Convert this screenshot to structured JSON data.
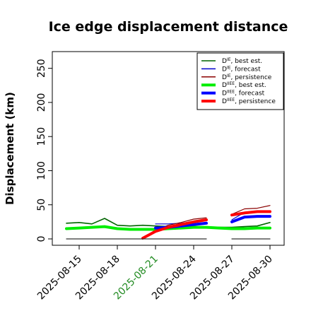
{
  "chart_data": {
    "type": "line",
    "title": "Ice edge displacement distance",
    "ylabel": "Displacement (km)",
    "xlabel": "",
    "ylim": [
      0,
      260
    ],
    "yticks": [
      0,
      50,
      100,
      150,
      200,
      250
    ],
    "xlim": [
      "2025-08-13",
      "2025-08-31"
    ],
    "xticks": [
      "2025-08-15",
      "2025-08-18",
      "2025-08-21",
      "2025-08-24",
      "2025-08-27",
      "2025-08-30"
    ],
    "highlight_tick": "2025-08-21",
    "highlight_color": "#228B22",
    "grid": false,
    "legend_position": "top-right",
    "series": [
      {
        "name": "D^IE, best est.",
        "color": "#006400",
        "width": 1.6,
        "x": [
          "2025-08-14",
          "2025-08-15",
          "2025-08-16",
          "2025-08-17",
          "2025-08-18",
          "2025-08-19",
          "2025-08-20",
          "2025-08-21",
          "2025-08-22",
          "2025-08-23",
          "2025-08-24",
          "2025-08-25",
          "2025-08-26",
          "2025-08-27",
          "2025-08-28",
          "2025-08-29",
          "2025-08-30"
        ],
        "y": [
          23,
          24,
          22,
          30,
          20,
          19,
          20,
          19,
          18,
          18,
          18,
          17,
          17,
          17,
          18,
          19,
          24
        ]
      },
      {
        "name": "D^IE, forecast",
        "color": "#0000cd",
        "width": 1.2,
        "x": [
          "2025-08-21",
          "2025-08-22",
          "2025-08-23",
          "2025-08-24",
          "2025-08-25"
        ],
        "y": [
          22,
          22,
          23,
          25,
          27
        ]
      },
      {
        "name": "D^IE, forecast",
        "color": "#0000cd",
        "width": 1.2,
        "x": [
          "2025-08-27",
          "2025-08-28",
          "2025-08-29",
          "2025-08-30"
        ],
        "y": [
          28,
          39,
          40,
          40
        ]
      },
      {
        "name": "D^IE, persistence",
        "color": "#8b0000",
        "width": 1.2,
        "x": [
          "2025-08-20",
          "2025-08-21",
          "2025-08-22",
          "2025-08-23",
          "2025-08-24",
          "2025-08-25"
        ],
        "y": [
          1,
          13,
          20,
          24,
          29,
          31
        ]
      },
      {
        "name": "D^IE, persistence",
        "color": "#8b0000",
        "width": 1.2,
        "x": [
          "2025-08-27",
          "2025-08-28",
          "2025-08-29",
          "2025-08-30"
        ],
        "y": [
          36,
          44,
          45,
          49
        ]
      },
      {
        "name": "D^IIEE, best est.",
        "color": "#00ee00",
        "width": 4,
        "x": [
          "2025-08-14",
          "2025-08-15",
          "2025-08-16",
          "2025-08-17",
          "2025-08-18",
          "2025-08-19",
          "2025-08-20",
          "2025-08-21",
          "2025-08-22",
          "2025-08-23",
          "2025-08-24",
          "2025-08-25",
          "2025-08-26",
          "2025-08-27",
          "2025-08-28",
          "2025-08-29",
          "2025-08-30"
        ],
        "y": [
          15,
          16,
          17,
          18,
          15,
          14,
          14,
          14,
          15,
          16,
          17,
          17,
          16,
          15,
          15,
          16,
          16
        ]
      },
      {
        "name": "D^IIEE, forecast",
        "color": "#0000ff",
        "width": 4,
        "x": [
          "2025-08-21",
          "2025-08-22",
          "2025-08-23",
          "2025-08-24",
          "2025-08-25"
        ],
        "y": [
          16,
          17,
          19,
          21,
          23
        ]
      },
      {
        "name": "D^IIEE, forecast",
        "color": "#0000ff",
        "width": 4,
        "x": [
          "2025-08-27",
          "2025-08-28",
          "2025-08-29",
          "2025-08-30"
        ],
        "y": [
          25,
          32,
          33,
          33
        ]
      },
      {
        "name": "D^IIEE, persistence",
        "color": "#ff0000",
        "width": 4,
        "x": [
          "2025-08-20",
          "2025-08-21",
          "2025-08-22",
          "2025-08-23",
          "2025-08-24",
          "2025-08-25"
        ],
        "y": [
          1,
          11,
          17,
          21,
          25,
          28
        ]
      },
      {
        "name": "D^IIEE, persistence",
        "color": "#ff0000",
        "width": 4,
        "x": [
          "2025-08-27",
          "2025-08-28",
          "2025-08-29",
          "2025-08-30"
        ],
        "y": [
          35,
          38,
          40,
          40
        ]
      },
      {
        "name": "",
        "color": "#333333",
        "width": 1.2,
        "x": [
          "2025-08-14",
          "2025-08-25"
        ],
        "y": [
          0,
          0
        ]
      },
      {
        "name": "",
        "color": "#333333",
        "width": 1.2,
        "x": [
          "2025-08-27",
          "2025-08-30"
        ],
        "y": [
          0,
          0
        ]
      }
    ],
    "legend": [
      {
        "base": "D",
        "sup": "IE",
        "rest": ", best est.",
        "color": "#006400",
        "thick": false
      },
      {
        "base": "D",
        "sup": "IE",
        "rest": ", forecast",
        "color": "#0000cd",
        "thick": false
      },
      {
        "base": "D",
        "sup": "IE",
        "rest": ", persistence",
        "color": "#8b0000",
        "thick": false
      },
      {
        "base": "D",
        "sup": "IIEE",
        "rest": ", best est.",
        "color": "#00ee00",
        "thick": true
      },
      {
        "base": "D",
        "sup": "IIEE",
        "rest": ", forecast",
        "color": "#0000ff",
        "thick": true
      },
      {
        "base": "D",
        "sup": "IIEE",
        "rest": ", persistence",
        "color": "#ff0000",
        "thick": true
      }
    ]
  }
}
